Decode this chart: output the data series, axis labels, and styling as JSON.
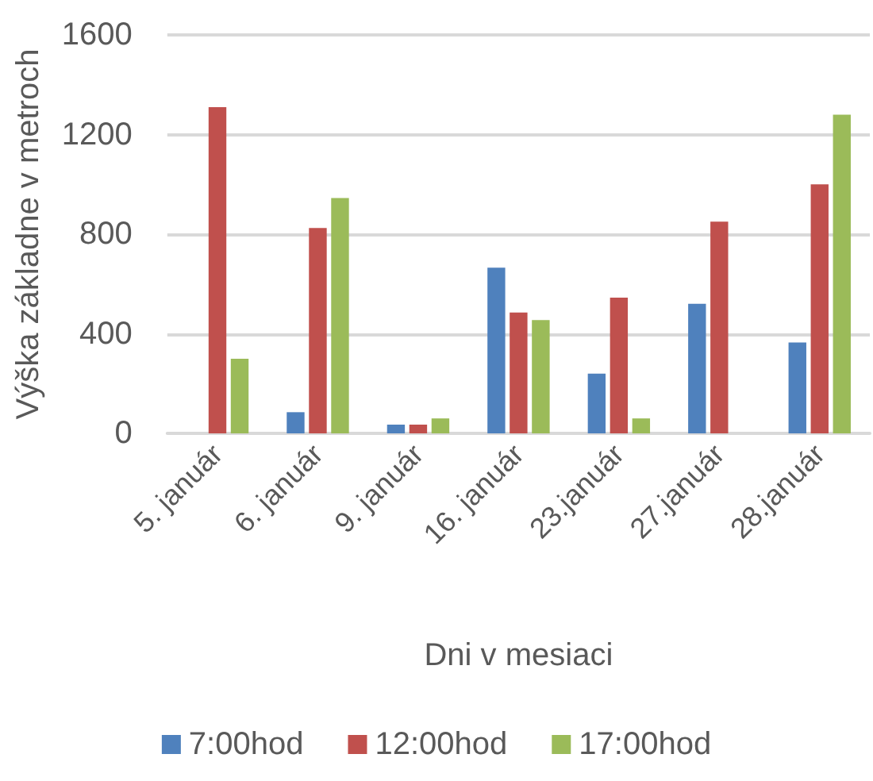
{
  "chart_data": {
    "type": "bar",
    "xlabel": "Dni v mesiaci",
    "ylabel": "Výška základne v metroch",
    "categories": [
      "5. január",
      "6. január",
      "9. január",
      "16. január",
      "23.január",
      "27.január",
      "28.január"
    ],
    "series": [
      {
        "name": "7:00hod",
        "color": "#4f81bd",
        "values": [
          null,
          85,
          35,
          665,
          240,
          520,
          365
        ]
      },
      {
        "name": "12:00hod",
        "color": "#c0504d",
        "values": [
          1310,
          825,
          35,
          485,
          545,
          850,
          1000
        ]
      },
      {
        "name": "17:00hod",
        "color": "#9bbb59",
        "values": [
          300,
          945,
          60,
          455,
          60,
          null,
          1280
        ]
      }
    ],
    "ylim": [
      0,
      1600
    ],
    "yticks": [
      0,
      400,
      800,
      1200,
      1600
    ],
    "grid": "y",
    "legend": "bottom"
  }
}
